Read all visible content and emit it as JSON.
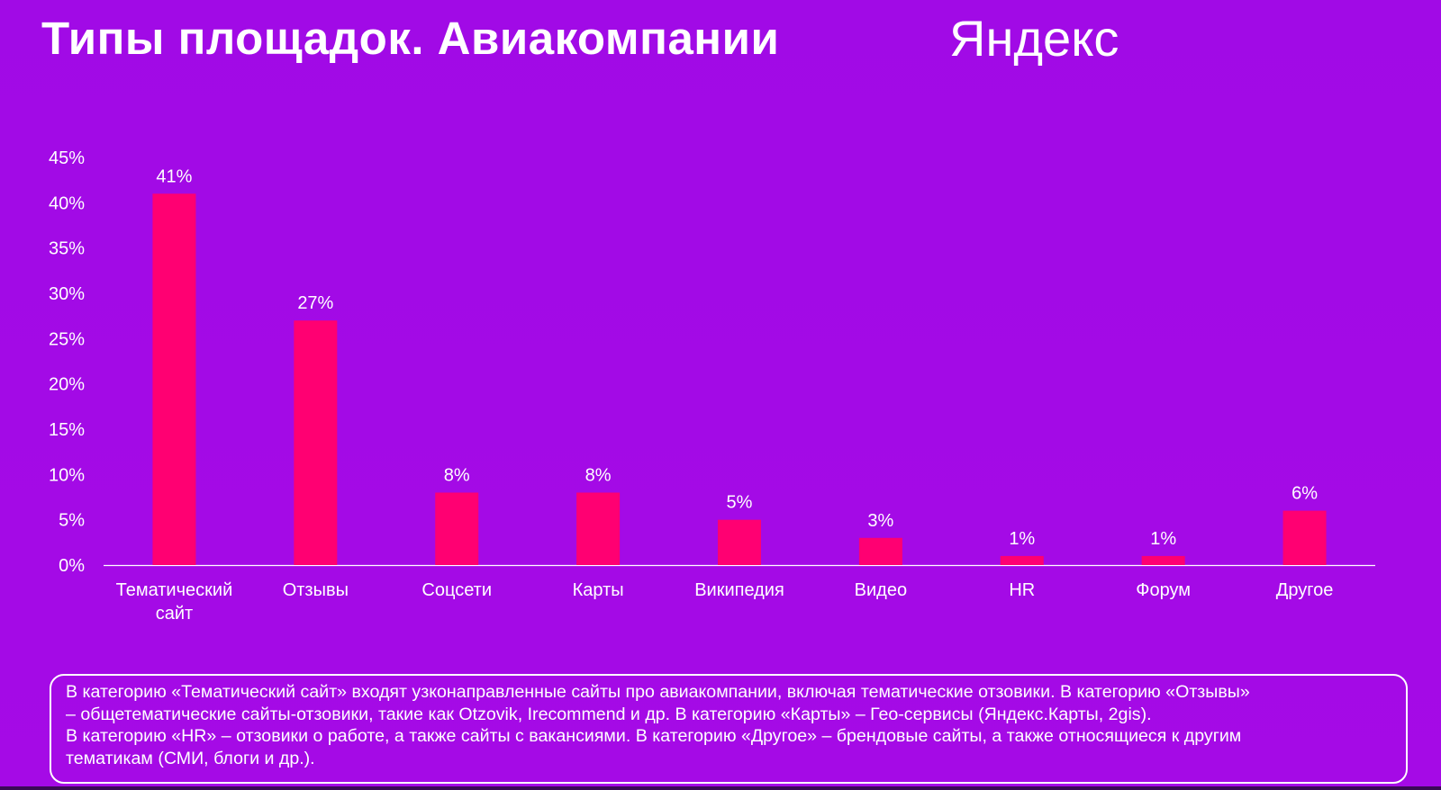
{
  "header": {
    "title": "Типы площадок. Авиакомпании",
    "logo_text": "Яндекс"
  },
  "colors": {
    "background": "#a30ae6",
    "bar": "#ff0072",
    "axis": "#ffffff",
    "text": "#ffffff"
  },
  "chart_data": {
    "type": "bar",
    "title": "",
    "xlabel": "",
    "ylabel": "",
    "categories": [
      [
        "Тематический",
        "сайт"
      ],
      [
        "Отзывы"
      ],
      [
        "Соцсети"
      ],
      [
        "Карты"
      ],
      [
        "Википедия"
      ],
      [
        "Видео"
      ],
      [
        "HR"
      ],
      [
        "Форум"
      ],
      [
        "Другое"
      ]
    ],
    "values": [
      41,
      27,
      8,
      8,
      5,
      3,
      1,
      1,
      6
    ],
    "value_labels": [
      "41%",
      "27%",
      "8%",
      "8%",
      "5%",
      "3%",
      "1%",
      "1%",
      "6%"
    ],
    "ylim": [
      0,
      45
    ],
    "y_ticks": [
      0,
      5,
      10,
      15,
      20,
      25,
      30,
      35,
      40,
      45
    ],
    "y_tick_labels": [
      "0%",
      "5%",
      "10%",
      "15%",
      "20%",
      "25%",
      "30%",
      "35%",
      "40%",
      "45%"
    ],
    "grid": false,
    "legend": "none"
  },
  "note": {
    "lines": [
      "В категорию «Тематический сайт» входят узконаправленные сайты про авиакомпании, включая тематические отзовики. В категорию «Отзывы»",
      "– общетематические сайты-отзовики, такие как Otzovik, Irecommend и др. В категорию «Карты» – Гео-сервисы (Яндекс.Карты, 2gis).",
      "В категорию «HR» – отзовики о работе, а также сайты с вакансиями. В категорию «Другое» – брендовые сайты, а также относящиеся к другим",
      "тематикам (СМИ, блоги и др.)."
    ]
  }
}
